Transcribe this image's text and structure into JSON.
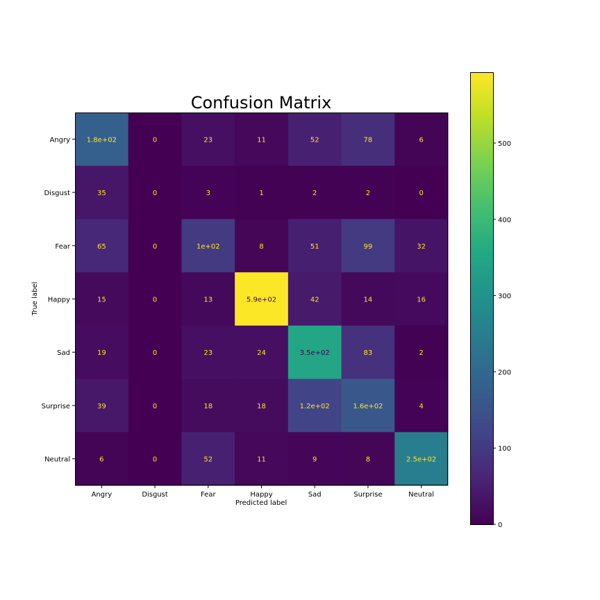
{
  "chart_data": {
    "type": "heatmap",
    "title": "Confusion Matrix",
    "xlabel": "Predicted label",
    "ylabel": "True label",
    "x_categories": [
      "Angry",
      "Disgust",
      "Fear",
      "Happy",
      "Sad",
      "Surprise",
      "Neutral"
    ],
    "y_categories": [
      "Angry",
      "Disgust",
      "Fear",
      "Happy",
      "Sad",
      "Surprise",
      "Neutral"
    ],
    "values": [
      [
        180,
        0,
        23,
        11,
        52,
        78,
        6
      ],
      [
        35,
        0,
        3,
        1,
        2,
        2,
        0
      ],
      [
        65,
        0,
        100,
        8,
        51,
        99,
        32
      ],
      [
        15,
        0,
        13,
        590,
        42,
        14,
        16
      ],
      [
        19,
        0,
        23,
        24,
        350,
        83,
        2
      ],
      [
        39,
        0,
        18,
        18,
        120,
        160,
        4
      ],
      [
        6,
        0,
        52,
        11,
        9,
        8,
        250
      ]
    ],
    "value_labels": [
      [
        "1.8e+02",
        "0",
        "23",
        "11",
        "52",
        "78",
        "6"
      ],
      [
        "35",
        "0",
        "3",
        "1",
        "2",
        "2",
        "0"
      ],
      [
        "65",
        "0",
        "1e+02",
        "8",
        "51",
        "99",
        "32"
      ],
      [
        "15",
        "0",
        "13",
        "5.9e+02",
        "42",
        "14",
        "16"
      ],
      [
        "19",
        "0",
        "23",
        "24",
        "3.5e+02",
        "83",
        "2"
      ],
      [
        "39",
        "0",
        "18",
        "18",
        "1.2e+02",
        "1.6e+02",
        "4"
      ],
      [
        "6",
        "0",
        "52",
        "11",
        "9",
        "8",
        "2.5e+02"
      ]
    ],
    "colormap": "viridis",
    "colorbar": {
      "range": [
        0,
        592
      ],
      "ticks": [
        0,
        100,
        200,
        300,
        400,
        500
      ],
      "tick_labels": [
        "0",
        "100",
        "200",
        "300",
        "400",
        "500"
      ]
    },
    "text_colors": {
      "light": "#fde725",
      "dark": "#440154"
    }
  }
}
